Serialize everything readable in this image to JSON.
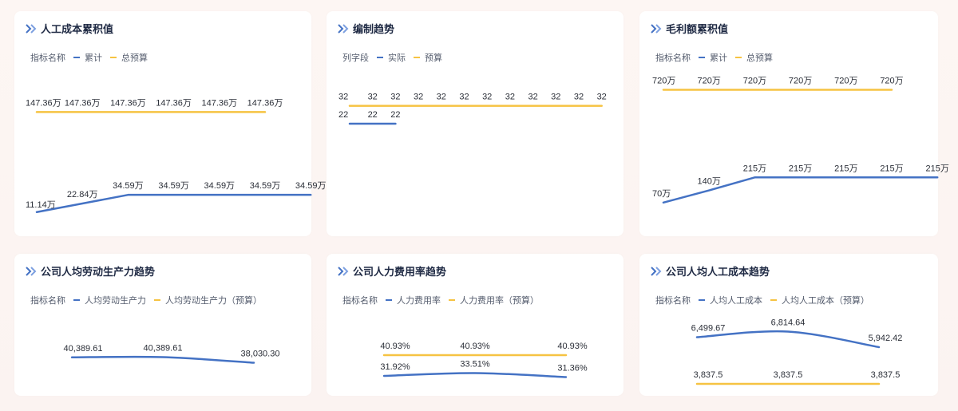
{
  "colors": {
    "actual": "#4472c4",
    "budget": "#f6c342",
    "title": "#1f2a44",
    "label": "#2b2f38"
  },
  "icons": {
    "title_marker": "double-chevron-right-icon"
  },
  "cards": [
    {
      "title": "人工成本累积值",
      "legend_label": "指标名称",
      "series_names": [
        "累计",
        "总预算"
      ]
    },
    {
      "title": "编制趋势",
      "legend_label": "列字段",
      "series_names": [
        "实际",
        "预算"
      ]
    },
    {
      "title": "毛利额累积值",
      "legend_label": "指标名称",
      "series_names": [
        "累计",
        "总预算"
      ]
    },
    {
      "title": "公司人均劳动生产力趋势",
      "legend_label": "指标名称",
      "series_names": [
        "人均劳动生产力",
        "人均劳动生产力（预算）"
      ]
    },
    {
      "title": "公司人力费用率趋势",
      "legend_label": "指标名称",
      "series_names": [
        "人力费用率",
        "人力费用率（预算）"
      ]
    },
    {
      "title": "公司人均人工成本趋势",
      "legend_label": "指标名称",
      "series_names": [
        "人均人工成本",
        "人均人工成本（预算）"
      ]
    }
  ],
  "chart_data": [
    {
      "type": "line",
      "series": [
        {
          "name": "累计",
          "values": [
            11.14,
            22.84,
            34.59,
            34.59,
            34.59,
            34.59,
            34.59
          ],
          "labels": [
            "11.14万",
            "22.84万",
            "34.59万",
            "34.59万",
            "34.59万",
            "34.59万",
            "34.59万"
          ]
        },
        {
          "name": "总预算",
          "values": [
            147.36,
            147.36,
            147.36,
            147.36,
            147.36,
            147.36
          ],
          "labels": [
            "147.36万",
            "147.36万",
            "147.36万",
            "147.36万",
            "147.36万",
            "147.36万"
          ]
        }
      ]
    },
    {
      "type": "line",
      "series": [
        {
          "name": "实际",
          "values": [
            22,
            22,
            22
          ],
          "labels": [
            "22",
            "22",
            "22"
          ]
        },
        {
          "name": "预算",
          "values": [
            32,
            32,
            32,
            32,
            32,
            32,
            32,
            32,
            32,
            32,
            32,
            32
          ],
          "labels": [
            "32",
            "32",
            "32",
            "32",
            "32",
            "32",
            "32",
            "32",
            "32",
            "32",
            "32",
            "32"
          ]
        }
      ]
    },
    {
      "type": "line",
      "series": [
        {
          "name": "累计",
          "values": [
            70,
            140,
            215,
            215,
            215,
            215,
            215
          ],
          "labels": [
            "70万",
            "140万",
            "215万",
            "215万",
            "215万",
            "215万",
            "215万"
          ]
        },
        {
          "name": "总预算",
          "values": [
            720,
            720,
            720,
            720,
            720,
            720
          ],
          "labels": [
            "720万",
            "720万",
            "720万",
            "720万",
            "720万",
            "720万"
          ]
        }
      ]
    },
    {
      "type": "line",
      "series": [
        {
          "name": "人均劳动生产力",
          "values": [
            40389.61,
            40389.61,
            38030.3
          ],
          "labels": [
            "40,389.61",
            "40,389.61",
            "38,030.30"
          ]
        }
      ]
    },
    {
      "type": "line",
      "series": [
        {
          "name": "人力费用率",
          "values": [
            31.92,
            33.51,
            31.36
          ],
          "labels": [
            "31.92%",
            "33.51%",
            "31.36%"
          ]
        },
        {
          "name": "人力费用率（预算）",
          "values": [
            40.93,
            40.93,
            40.93
          ],
          "labels": [
            "40.93%",
            "40.93%",
            "40.93%"
          ]
        }
      ]
    },
    {
      "type": "line",
      "series": [
        {
          "name": "人均人工成本",
          "values": [
            6499.67,
            6814.64,
            5942.42
          ],
          "labels": [
            "6,499.67",
            "6,814.64",
            "5,942.42"
          ]
        },
        {
          "name": "人均人工成本（预算）",
          "values": [
            3837.5,
            3837.5,
            3837.5
          ],
          "labels": [
            "3,837.5",
            "3,837.5",
            "3,837.5"
          ]
        }
      ]
    }
  ]
}
